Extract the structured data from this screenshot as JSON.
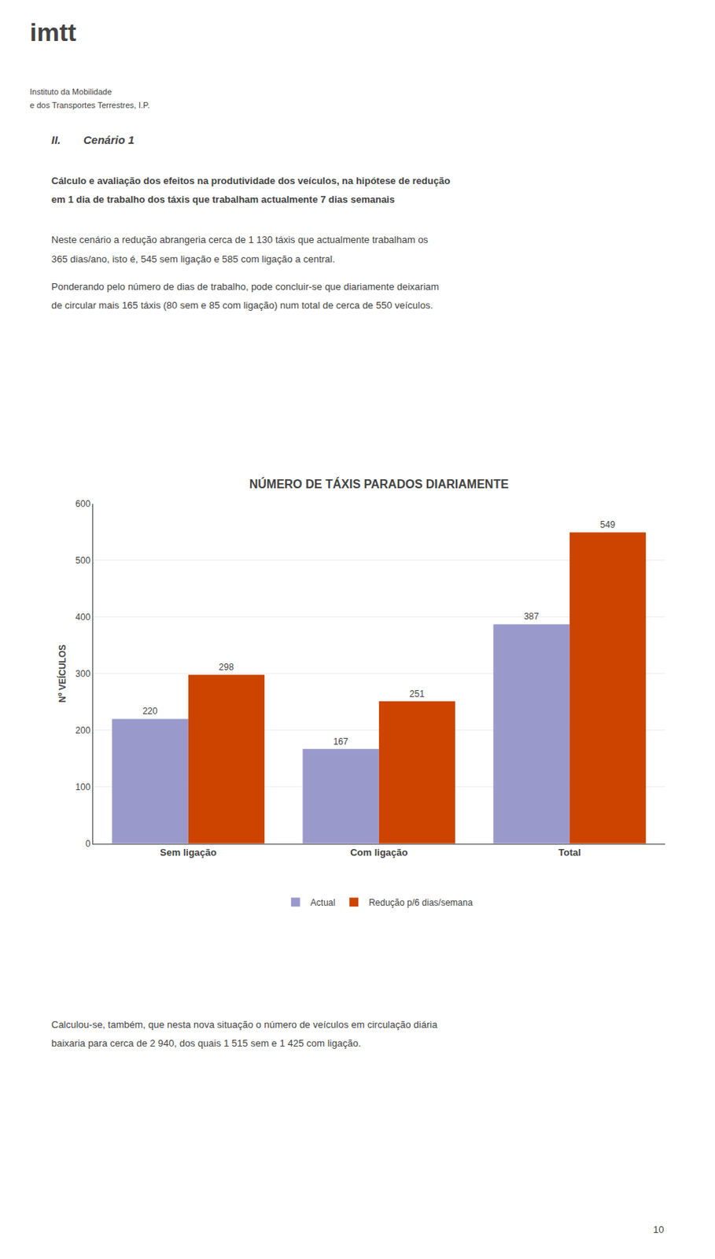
{
  "chart_data": {
    "type": "bar",
    "title": "NÚMERO DE TÁXIS PARADOS DIARIAMENTE",
    "categories": [
      "Sem ligação",
      "Com ligação",
      "Total"
    ],
    "series": [
      {
        "name": "Actual",
        "color": "#9999CC",
        "values": [
          220,
          167,
          387
        ]
      },
      {
        "name": "Redução p/6 dias/semana",
        "color": "#CC4400",
        "values": [
          298,
          251,
          549
        ]
      }
    ],
    "y_label": "Nº VEÍCULOS",
    "ylim": [
      0,
      600
    ],
    "yticks": [
      0,
      100,
      200,
      300,
      400,
      500,
      600
    ],
    "grid": true,
    "legend": "bottom",
    "data_labels": true,
    "annotations": [
      "imtt",
      "Instituto da Mobilidade",
      "e dos Transportes Terrestres, I.P.",
      "II.",
      "Cenário 1",
      "Cálculo e avaliação dos efeitos na produtividade dos veículos, na hipótese de redução",
      "em 1 dia de trabalho dos táxis que trabalham actualmente 7 dias semanais",
      "Neste cenário a redução abrangeria cerca de 1 130 táxis que actualmente trabalham os",
      "365 dias/ano, isto é, 545 sem ligação e 585 com ligação a central.",
      "Ponderando pelo número de dias de trabalho, pode concluir-se que diariamente deixariam",
      "de circular mais 165 táxis (80 sem e 85 com ligação) num total de cerca de 550 veículos.",
      "Calculou-se, também, que nesta nova situação o número de veículos em circulação diária",
      "baixaria para cerca de 2 940, dos quais 1 515 sem e 1 425 com ligação.",
      "10"
    ]
  }
}
